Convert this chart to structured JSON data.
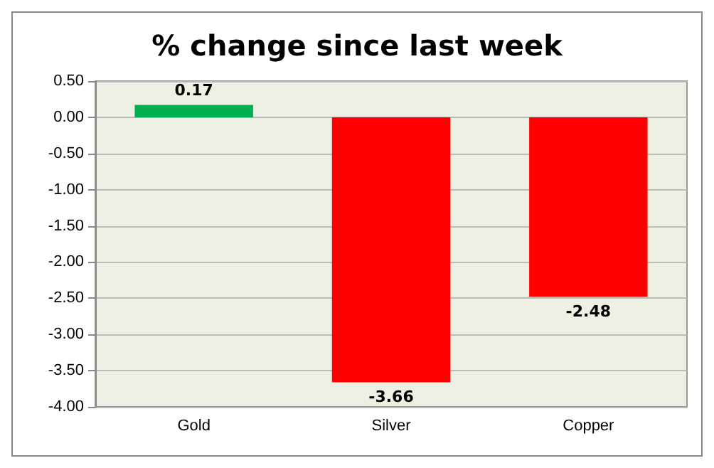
{
  "chart_data": {
    "type": "bar",
    "title": "% change since last week",
    "categories": [
      "Gold",
      "Silver",
      "Copper"
    ],
    "values": [
      0.17,
      -3.66,
      -2.48
    ],
    "colors": [
      "#00b050",
      "#ff0000",
      "#ff0000"
    ],
    "ylim": [
      -4,
      0.5
    ],
    "yticks": [
      {
        "value": -4,
        "label": "-4.00"
      },
      {
        "value": -3.5,
        "label": "-3.50"
      },
      {
        "value": -3,
        "label": "-3.00"
      },
      {
        "value": -2.5,
        "label": "-2.50"
      },
      {
        "value": -2,
        "label": "-2.00"
      },
      {
        "value": -1.5,
        "label": "-1.50"
      },
      {
        "value": -1,
        "label": "-1.00"
      },
      {
        "value": -0.5,
        "label": "-0.50"
      },
      {
        "value": 0,
        "label": "0.00"
      },
      {
        "value": 0.5,
        "label": "0.50"
      }
    ],
    "grid": "y",
    "data_labels": true
  }
}
